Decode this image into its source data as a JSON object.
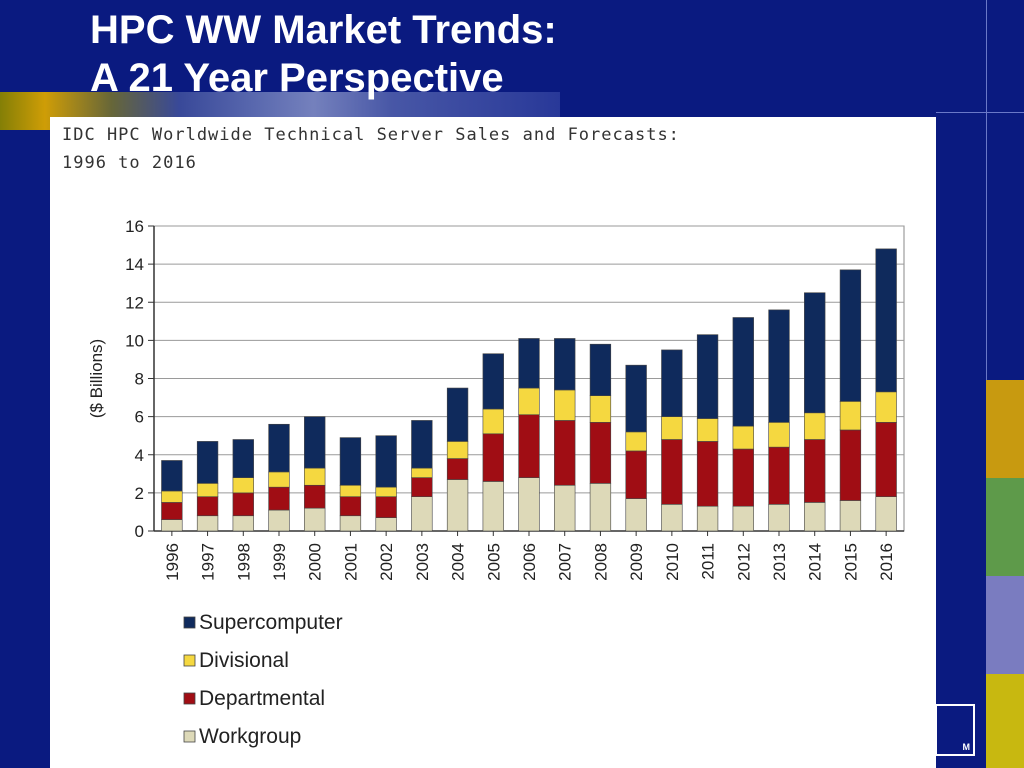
{
  "slide": {
    "title_line1": "HPC WW Market Trends:",
    "title_line2": "A 21 Year Perspective",
    "logo_text": "M",
    "background_color": "#0a1a80",
    "side_colors": [
      "#c89a10",
      "#5e9a4a",
      "#7a7cc0",
      "#c8b810"
    ]
  },
  "chart_data": {
    "type": "bar",
    "stacked": true,
    "title": "IDC HPC Worldwide Technical Server Sales and Forecasts:\n1996 to 2016",
    "xlabel": "",
    "ylabel": "($ Billions)",
    "ylim": [
      0,
      16
    ],
    "yticks": [
      0,
      2,
      4,
      6,
      8,
      10,
      12,
      14,
      16
    ],
    "grid": true,
    "legend_position": "bottom",
    "categories": [
      "1996",
      "1997",
      "1998",
      "1999",
      "2000",
      "2001",
      "2002",
      "2003",
      "2004",
      "2005",
      "2006",
      "2007",
      "2008",
      "2009",
      "2010",
      "2011",
      "2012",
      "2013",
      "2014",
      "2015",
      "2016"
    ],
    "series": [
      {
        "name": "Workgroup",
        "color": "#ddd9b8",
        "values": [
          0.6,
          0.8,
          0.8,
          1.1,
          1.2,
          0.8,
          0.7,
          1.8,
          2.7,
          2.6,
          2.8,
          2.4,
          2.5,
          1.7,
          1.4,
          1.3,
          1.3,
          1.4,
          1.5,
          1.6,
          1.8
        ]
      },
      {
        "name": "Departmental",
        "color": "#a00d14",
        "values": [
          0.9,
          1.0,
          1.2,
          1.2,
          1.2,
          1.0,
          1.1,
          1.0,
          1.1,
          2.5,
          3.3,
          3.4,
          3.2,
          2.5,
          3.4,
          3.4,
          3.0,
          3.0,
          3.3,
          3.7,
          3.9
        ]
      },
      {
        "name": "Divisional",
        "color": "#f5d840",
        "values": [
          0.6,
          0.7,
          0.8,
          0.8,
          0.9,
          0.6,
          0.5,
          0.5,
          0.9,
          1.3,
          1.4,
          1.6,
          1.4,
          1.0,
          1.2,
          1.2,
          1.2,
          1.3,
          1.4,
          1.5,
          1.6
        ]
      },
      {
        "name": "Supercomputer",
        "color": "#0f2a5c",
        "values": [
          1.6,
          2.2,
          2.0,
          2.5,
          2.7,
          2.5,
          2.7,
          2.5,
          2.8,
          2.9,
          2.6,
          2.7,
          2.7,
          3.5,
          3.5,
          4.4,
          5.7,
          5.9,
          6.3,
          6.9,
          7.5
        ]
      }
    ],
    "legend_order": [
      "Supercomputer",
      "Divisional",
      "Departmental",
      "Workgroup"
    ]
  }
}
